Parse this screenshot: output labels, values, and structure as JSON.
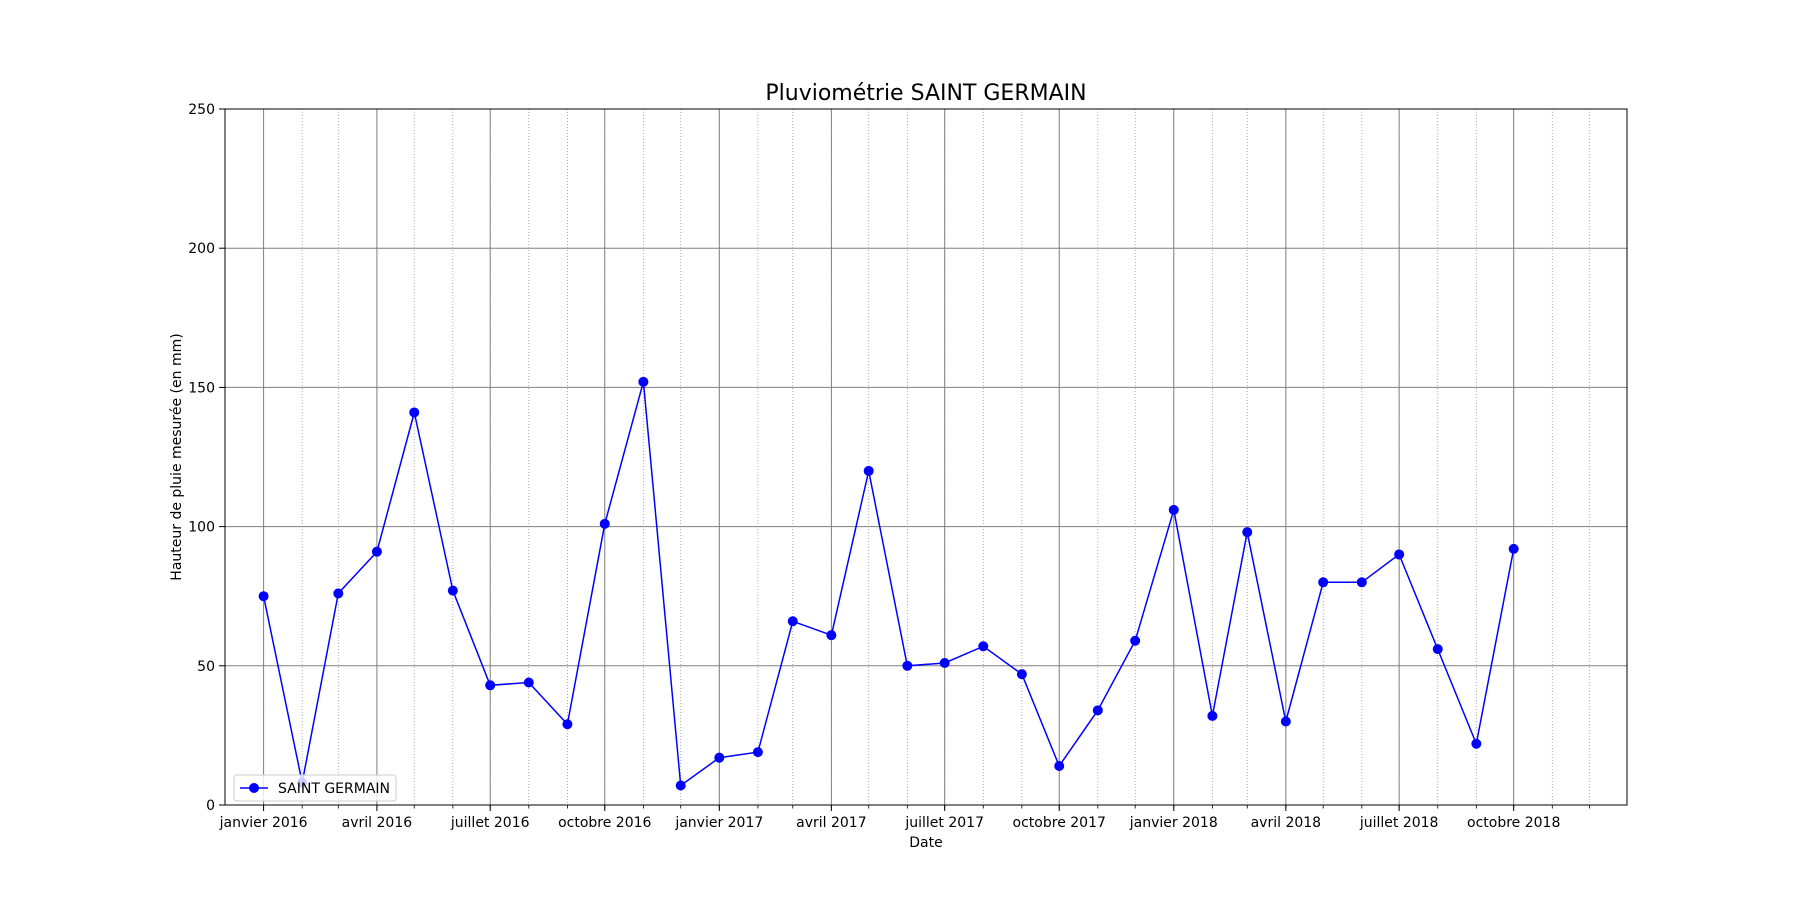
{
  "chart_data": {
    "type": "line",
    "title": "Pluviométrie SAINT GERMAIN",
    "xlabel": "Date",
    "ylabel": "Hauteur de pluie mesurée (en mm)",
    "ylim": [
      0,
      250
    ],
    "yticks": [
      0,
      50,
      100,
      150,
      200,
      250
    ],
    "xlim": [
      "2015-12-01",
      "2018-12-31"
    ],
    "xticks": [
      {
        "date": "2016-01-01",
        "label": "janvier 2016"
      },
      {
        "date": "2016-04-01",
        "label": "avril 2016"
      },
      {
        "date": "2016-07-01",
        "label": "juillet 2016"
      },
      {
        "date": "2016-10-01",
        "label": "octobre 2016"
      },
      {
        "date": "2017-01-01",
        "label": "janvier 2017"
      },
      {
        "date": "2017-04-01",
        "label": "avril 2017"
      },
      {
        "date": "2017-07-01",
        "label": "juillet 2017"
      },
      {
        "date": "2017-10-01",
        "label": "octobre 2017"
      },
      {
        "date": "2018-01-01",
        "label": "janvier 2018"
      },
      {
        "date": "2018-04-01",
        "label": "avril 2018"
      },
      {
        "date": "2018-07-01",
        "label": "juillet 2018"
      },
      {
        "date": "2018-10-01",
        "label": "octobre 2018"
      }
    ],
    "grid": true,
    "minor_grid": "monthly, dotted",
    "legend": "lower left",
    "series": [
      {
        "name": "SAINT GERMAIN",
        "color": "#0000ff",
        "marker": "circle",
        "x": [
          "2016-01-01",
          "2016-02-01",
          "2016-03-01",
          "2016-04-01",
          "2016-05-01",
          "2016-06-01",
          "2016-07-01",
          "2016-08-01",
          "2016-09-01",
          "2016-10-01",
          "2016-11-01",
          "2016-12-01",
          "2017-01-01",
          "2017-02-01",
          "2017-03-01",
          "2017-04-01",
          "2017-05-01",
          "2017-06-01",
          "2017-07-01",
          "2017-08-01",
          "2017-09-01",
          "2017-10-01",
          "2017-11-01",
          "2017-12-01",
          "2018-01-01",
          "2018-02-01",
          "2018-03-01",
          "2018-04-01",
          "2018-05-01",
          "2018-06-01",
          "2018-07-01",
          "2018-08-01",
          "2018-09-01",
          "2018-10-01"
        ],
        "y": [
          75,
          8,
          76,
          91,
          141,
          77,
          43,
          44,
          29,
          101,
          152,
          7,
          17,
          19,
          66,
          61,
          120,
          50,
          51,
          57,
          47,
          14,
          34,
          59,
          106,
          32,
          98,
          30,
          80,
          80,
          90,
          56,
          22,
          92
        ]
      }
    ]
  }
}
